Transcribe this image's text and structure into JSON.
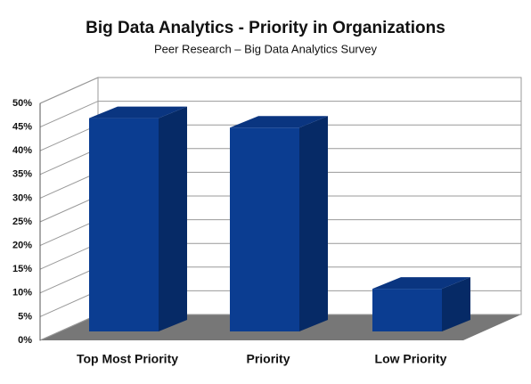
{
  "chart_data": {
    "type": "bar3d",
    "title": "Big Data Analytics - Priority in Organizations",
    "subtitle": "Peer Research – Big Data Analytics Survey",
    "categories": [
      "Top Most Priority",
      "Priority",
      "Low Priority"
    ],
    "values": [
      45,
      43,
      9
    ],
    "color": "#0b3d91",
    "ylim": [
      0,
      50
    ],
    "yticks": [
      {
        "value": 0,
        "label": "0%"
      },
      {
        "value": 5,
        "label": "5%"
      },
      {
        "value": 10,
        "label": "10%"
      },
      {
        "value": 15,
        "label": "15%"
      },
      {
        "value": 20,
        "label": "20%"
      },
      {
        "value": 25,
        "label": "25%"
      },
      {
        "value": 30,
        "label": "30%"
      },
      {
        "value": 35,
        "label": "35%"
      },
      {
        "value": 40,
        "label": "40%"
      },
      {
        "value": 45,
        "label": "45%"
      },
      {
        "value": 50,
        "label": "50%"
      }
    ],
    "grid": true
  }
}
